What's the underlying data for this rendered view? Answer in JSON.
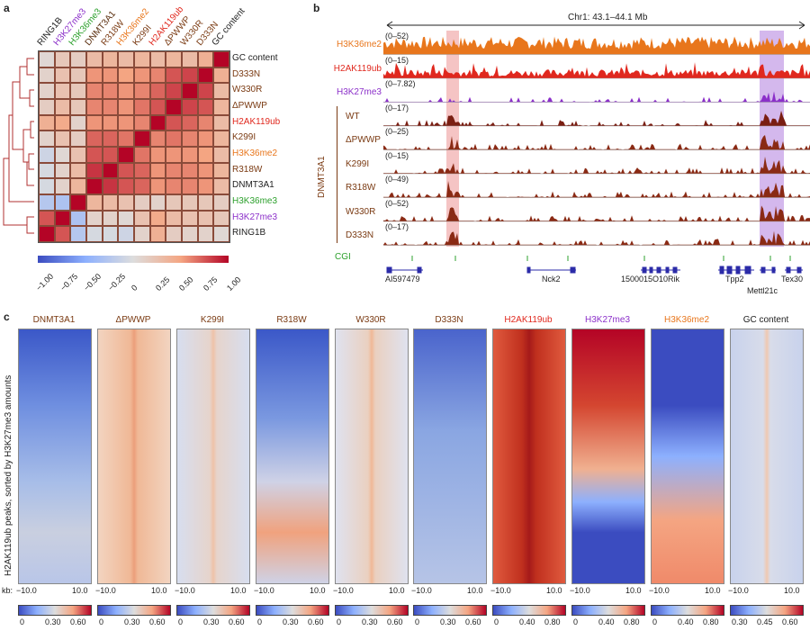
{
  "panel_a": {
    "letter": "a",
    "col_labels": [
      {
        "text": "RING1B",
        "color": "#222222"
      },
      {
        "text": "H3K27me3",
        "color": "#8b2fc9"
      },
      {
        "text": "H3K36me3",
        "color": "#2ca02c"
      },
      {
        "text": "DNMT3A1",
        "color": "#5a2e0e"
      },
      {
        "text": "R318W",
        "color": "#7a3a12"
      },
      {
        "text": "H3K36me2",
        "color": "#e8761c"
      },
      {
        "text": "K299I",
        "color": "#7a3a12"
      },
      {
        "text": "H2AK119ub",
        "color": "#e0281e"
      },
      {
        "text": "ΔPWWP",
        "color": "#7a3a12"
      },
      {
        "text": "W330R",
        "color": "#7a3a12"
      },
      {
        "text": "D333N",
        "color": "#7a3a12"
      },
      {
        "text": "GC content",
        "color": "#222222"
      }
    ],
    "row_labels": [
      {
        "text": "GC content",
        "color": "#222222"
      },
      {
        "text": "D333N",
        "color": "#7a3a12"
      },
      {
        "text": "W330R",
        "color": "#7a3a12"
      },
      {
        "text": "ΔPWWP",
        "color": "#7a3a12"
      },
      {
        "text": "H2AK119ub",
        "color": "#e0281e"
      },
      {
        "text": "K299I",
        "color": "#7a3a12"
      },
      {
        "text": "H3K36me2",
        "color": "#e8761c"
      },
      {
        "text": "R318W",
        "color": "#7a3a12"
      },
      {
        "text": "DNMT3A1",
        "color": "#222222"
      },
      {
        "text": "H3K36me3",
        "color": "#2ca02c"
      },
      {
        "text": "H3K27me3",
        "color": "#8b2fc9"
      },
      {
        "text": "RING1B",
        "color": "#222222"
      }
    ],
    "colorbar_ticks": [
      "−1.00",
      "−0.75",
      "−0.50",
      "−0.25",
      "0",
      "0.25",
      "0.50",
      "0.75",
      "1.00"
    ],
    "correlation_matrix": [
      [
        0.05,
        0.2,
        0.15,
        0.3,
        0.35,
        0.3,
        0.35,
        0.3,
        0.35,
        0.3,
        0.4,
        1.0
      ],
      [
        0.1,
        0.25,
        0.2,
        0.55,
        0.55,
        0.5,
        0.55,
        0.6,
        0.75,
        0.8,
        1.0,
        0.4
      ],
      [
        0.1,
        0.25,
        0.2,
        0.6,
        0.6,
        0.55,
        0.6,
        0.7,
        0.8,
        1.0,
        0.8,
        0.3
      ],
      [
        0.15,
        0.3,
        0.2,
        0.6,
        0.6,
        0.55,
        0.65,
        0.75,
        1.0,
        0.8,
        0.75,
        0.35
      ],
      [
        0.4,
        0.45,
        0.1,
        0.55,
        0.55,
        0.55,
        0.6,
        1.0,
        0.75,
        0.7,
        0.6,
        0.3
      ],
      [
        0.1,
        0.25,
        0.15,
        0.7,
        0.7,
        0.65,
        1.0,
        0.6,
        0.65,
        0.6,
        0.55,
        0.35
      ],
      [
        -0.1,
        0.05,
        0.25,
        0.75,
        0.75,
        1.0,
        0.65,
        0.55,
        0.55,
        0.55,
        0.5,
        0.3
      ],
      [
        -0.05,
        0.1,
        0.3,
        0.85,
        1.0,
        0.75,
        0.7,
        0.55,
        0.6,
        0.6,
        0.55,
        0.35
      ],
      [
        -0.05,
        0.1,
        0.35,
        1.0,
        0.85,
        0.75,
        0.7,
        0.55,
        0.6,
        0.6,
        0.55,
        0.3
      ],
      [
        -0.25,
        -0.3,
        1.0,
        0.35,
        0.3,
        0.25,
        0.15,
        0.1,
        0.2,
        0.2,
        0.2,
        0.15
      ],
      [
        0.75,
        1.0,
        -0.3,
        0.1,
        0.1,
        0.05,
        0.25,
        0.45,
        0.3,
        0.25,
        0.25,
        0.2
      ],
      [
        1.0,
        0.75,
        -0.25,
        -0.05,
        -0.05,
        -0.1,
        0.1,
        0.4,
        0.15,
        0.1,
        0.1,
        0.05
      ]
    ]
  },
  "panel_b": {
    "letter": "b",
    "region": "Chr1: 43.1–44.1 Mb",
    "group_label": "DNMT3A1",
    "tracks": [
      {
        "label": "H3K36me2",
        "range": "(0–52)",
        "color": "#e8761c",
        "label_color": "#e8761c"
      },
      {
        "label": "H2AK119ub",
        "range": "(0–15)",
        "color": "#e0281e",
        "label_color": "#e0281e"
      },
      {
        "label": "H3K27me3",
        "range": "(0–7.82)",
        "color": "#8b2fc9",
        "label_color": "#8b2fc9"
      },
      {
        "label": "WT",
        "range": "(0–17)",
        "color": "#7a1e12",
        "label_color": "#7a3a12"
      },
      {
        "label": "ΔPWWP",
        "range": "(0–25)",
        "color": "#8a2a14",
        "label_color": "#7a3a12"
      },
      {
        "label": "K299I",
        "range": "(0–15)",
        "color": "#8a2a14",
        "label_color": "#7a3a12"
      },
      {
        "label": "R318W",
        "range": "(0–49)",
        "color": "#8a2a14",
        "label_color": "#7a3a12"
      },
      {
        "label": "W330R",
        "range": "(0–52)",
        "color": "#8a2a14",
        "label_color": "#7a3a12"
      },
      {
        "label": "D333N",
        "range": "(0–17)",
        "color": "#8a2a14",
        "label_color": "#7a3a12"
      }
    ],
    "cgi_label": "CGI",
    "genes": [
      "AI597479",
      "Nck2",
      "1500015O10Rik",
      "Tpp2",
      "Mettl21c",
      "Tex30"
    ]
  },
  "panel_c": {
    "letter": "c",
    "y_label": "H2AK119ub peaks, sorted by H3K27me3 amounts",
    "kb_label": "kb:",
    "x_ticks": [
      "−10.0",
      "10.0"
    ],
    "heatmaps": [
      {
        "title": "DNMT3A1",
        "title_color": "#7a3a12",
        "cbar": [
          "0",
          "0.30",
          "0.60"
        ]
      },
      {
        "title": "ΔPWWP",
        "title_color": "#7a3a12",
        "cbar": [
          "0",
          "0.30",
          "0.60"
        ]
      },
      {
        "title": "K299I",
        "title_color": "#7a3a12",
        "cbar": [
          "0",
          "0.30",
          "0.60"
        ]
      },
      {
        "title": "R318W",
        "title_color": "#7a3a12",
        "cbar": [
          "0",
          "0.30",
          "0.60"
        ]
      },
      {
        "title": "W330R",
        "title_color": "#7a3a12",
        "cbar": [
          "0",
          "0.30",
          "0.60"
        ]
      },
      {
        "title": "D333N",
        "title_color": "#7a3a12",
        "cbar": [
          "0",
          "0.30",
          "0.60"
        ]
      },
      {
        "title": "H2AK119ub",
        "title_color": "#e0281e",
        "cbar": [
          "0",
          "0.40",
          "0.80"
        ]
      },
      {
        "title": "H3K27me3",
        "title_color": "#8b2fc9",
        "cbar": [
          "0",
          "0.40",
          "0.80"
        ]
      },
      {
        "title": "H3K36me2",
        "title_color": "#e8761c",
        "cbar": [
          "0",
          "0.40",
          "0.80"
        ]
      },
      {
        "title": "GC content",
        "title_color": "#222222",
        "cbar": [
          "0.30",
          "0.45",
          "0.60"
        ]
      }
    ]
  },
  "colors": {
    "cold": "#3b4cc0",
    "neutral": "#dddddd",
    "warm": "#b40426"
  }
}
